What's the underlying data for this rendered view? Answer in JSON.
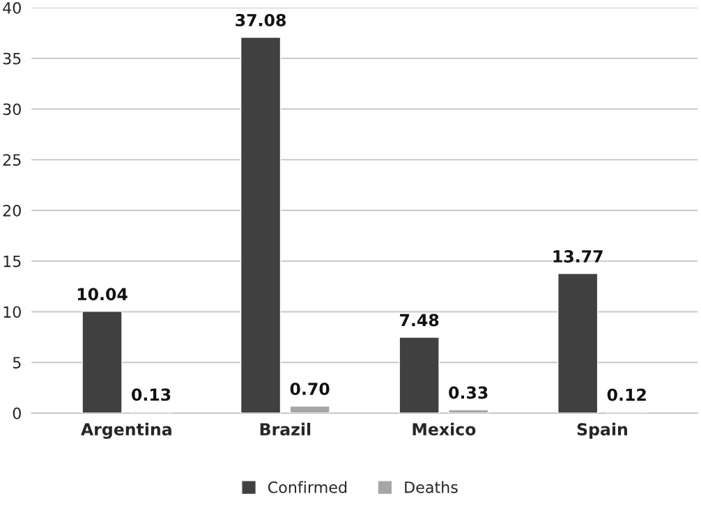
{
  "chart_data": {
    "type": "bar",
    "categories": [
      "Argentina",
      "Brazil",
      "Mexico",
      "Spain"
    ],
    "series": [
      {
        "name": "Confirmed",
        "color": "#404040",
        "values": [
          10.04,
          37.08,
          7.48,
          13.77
        ],
        "value_labels": [
          "10.04",
          "37.08",
          "7.48",
          "13.77"
        ]
      },
      {
        "name": "Deaths",
        "color": "#a6a6a6",
        "values": [
          0.13,
          0.7,
          0.33,
          0.12
        ],
        "value_labels": [
          "0.13",
          "0.70",
          "0.33",
          "0.12"
        ]
      }
    ],
    "ylim": [
      0,
      40
    ],
    "yticks": [
      0,
      5,
      10,
      15,
      20,
      25,
      30,
      35,
      40
    ],
    "grid": "y",
    "legend": "bottom"
  }
}
